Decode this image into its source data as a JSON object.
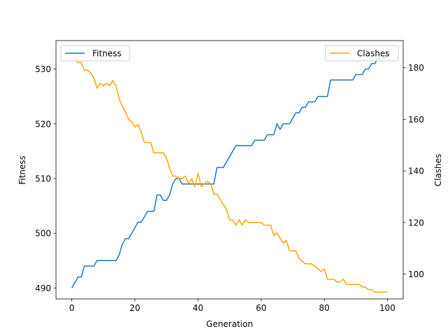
{
  "chart_data": {
    "type": "line",
    "xlabel": "Generation",
    "ylabel_left": "Fitness",
    "ylabel_right": "Clashes",
    "xlim": [
      -5,
      105
    ],
    "ylim_left": [
      488,
      535.2
    ],
    "ylim_right": [
      90.4,
      190.5
    ],
    "x_ticks": [
      0,
      20,
      40,
      60,
      80,
      100
    ],
    "y_ticks_left": [
      490,
      500,
      510,
      520,
      530
    ],
    "y_ticks_right": [
      100,
      120,
      140,
      160,
      180
    ],
    "grid": false,
    "legend_left": {
      "placement": "top-left",
      "label": "Fitness"
    },
    "legend_right": {
      "placement": "top-right",
      "label": "Clashes"
    },
    "series": [
      {
        "name": "Fitness",
        "axis": "left",
        "color": "#1f77b4",
        "x": [
          0,
          1,
          2,
          3,
          4,
          5,
          6,
          7,
          8,
          9,
          10,
          11,
          12,
          13,
          14,
          15,
          16,
          17,
          18,
          19,
          20,
          21,
          22,
          23,
          24,
          25,
          26,
          27,
          28,
          29,
          30,
          31,
          32,
          33,
          34,
          35,
          36,
          37,
          38,
          39,
          40,
          41,
          42,
          43,
          44,
          45,
          46,
          47,
          48,
          49,
          50,
          51,
          52,
          53,
          54,
          55,
          56,
          57,
          58,
          59,
          60,
          61,
          62,
          63,
          64,
          65,
          66,
          67,
          68,
          69,
          70,
          71,
          72,
          73,
          74,
          75,
          76,
          77,
          78,
          79,
          80,
          81,
          82,
          83,
          84,
          85,
          86,
          87,
          88,
          89,
          90,
          91,
          92,
          93,
          94,
          95,
          96,
          97,
          98,
          99,
          100
        ],
        "values": [
          490,
          491,
          492,
          492,
          494,
          494,
          494,
          494,
          495,
          495,
          495,
          495,
          495,
          495,
          495,
          496,
          498,
          499,
          499,
          500,
          501,
          502,
          502,
          503,
          504,
          504,
          504,
          507,
          507,
          506,
          506,
          507,
          509,
          510,
          510,
          509,
          509,
          509,
          509,
          509,
          509,
          509,
          509,
          509,
          509,
          509,
          512,
          512,
          512,
          513,
          514,
          515,
          516,
          516,
          516,
          516,
          516,
          516,
          517,
          517,
          517,
          517,
          518,
          518,
          518,
          520,
          519,
          520,
          520,
          520,
          521,
          522,
          522,
          523,
          523,
          524,
          524,
          524,
          525,
          525,
          525,
          525,
          528,
          528,
          528,
          528,
          528,
          528,
          528,
          528,
          529,
          529,
          529,
          530,
          530,
          531,
          531,
          532,
          532,
          532,
          533
        ]
      },
      {
        "name": "Clashes",
        "axis": "right",
        "color": "#ffa500",
        "x": [
          0,
          1,
          2,
          3,
          4,
          5,
          6,
          7,
          8,
          9,
          10,
          11,
          12,
          13,
          14,
          15,
          16,
          17,
          18,
          19,
          20,
          21,
          22,
          23,
          24,
          25,
          26,
          27,
          28,
          29,
          30,
          31,
          32,
          33,
          34,
          35,
          36,
          37,
          38,
          39,
          40,
          41,
          42,
          43,
          44,
          45,
          46,
          47,
          48,
          49,
          50,
          51,
          52,
          53,
          54,
          55,
          56,
          57,
          58,
          59,
          60,
          61,
          62,
          63,
          64,
          65,
          66,
          67,
          68,
          69,
          70,
          71,
          72,
          73,
          74,
          75,
          76,
          77,
          78,
          79,
          80,
          81,
          82,
          83,
          84,
          85,
          86,
          87,
          88,
          89,
          90,
          91,
          92,
          93,
          94,
          95,
          96,
          97,
          98,
          99,
          100
        ],
        "values": [
          186,
          184,
          182,
          182,
          179,
          179,
          178,
          176,
          172,
          174,
          173,
          174,
          173,
          175,
          173,
          168,
          165,
          163,
          160,
          159,
          157,
          158,
          155,
          151,
          151,
          151,
          147,
          147,
          147,
          147,
          145,
          141,
          138,
          138,
          137,
          137,
          138,
          135,
          137,
          134,
          139,
          134,
          135,
          136,
          135,
          131,
          131,
          129,
          127,
          125,
          121,
          121,
          119,
          121,
          119,
          121,
          120,
          120,
          120,
          120,
          120,
          119,
          119,
          119,
          115,
          116,
          114,
          112,
          113,
          109,
          109,
          109,
          106,
          105,
          104,
          104,
          104,
          103,
          102,
          101,
          102,
          98,
          98,
          98,
          97,
          97,
          98,
          96,
          96,
          96,
          96,
          96,
          95,
          95,
          94,
          94,
          93,
          93,
          93,
          93,
          93
        ]
      }
    ]
  }
}
